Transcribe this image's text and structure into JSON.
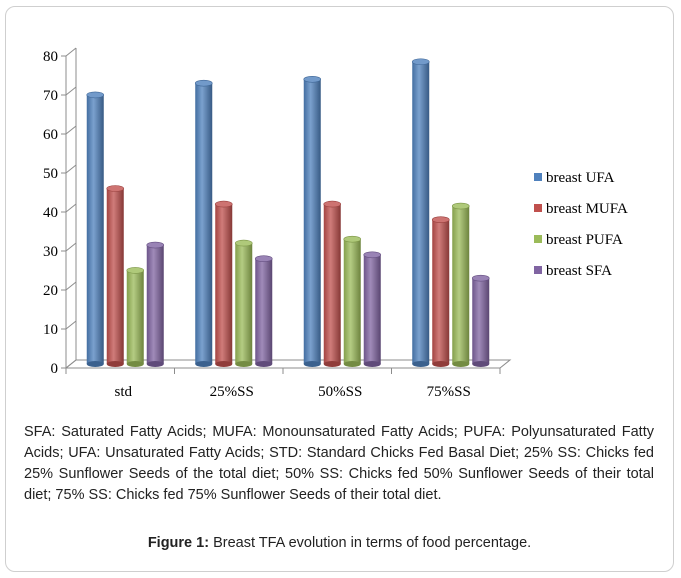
{
  "chart_data": {
    "type": "bar",
    "categories": [
      "std",
      "25%SS",
      "50%SS",
      "75%SS"
    ],
    "series": [
      {
        "name": "breast UFA",
        "values": [
          69,
          72,
          73,
          77.5
        ],
        "color": "#4f81bd"
      },
      {
        "name": "breast MUFA",
        "values": [
          45,
          41,
          41,
          37
        ],
        "color": "#c0504d"
      },
      {
        "name": "breast PUFA",
        "values": [
          24,
          31,
          32,
          40.5
        ],
        "color": "#9bbb59"
      },
      {
        "name": "breast SFA",
        "values": [
          30.5,
          27,
          28,
          22
        ],
        "color": "#8064a2"
      }
    ],
    "y_ticks": [
      "0",
      "10",
      "20",
      "30",
      "40",
      "50",
      "60",
      "70",
      "80"
    ],
    "ylim": [
      0,
      80
    ],
    "legend_position": "right",
    "grid": false
  },
  "caption": "SFA: Saturated Fatty Acids; MUFA: Monounsaturated Fatty Acids; PUFA: Polyunsaturated Fatty Acids; UFA: Unsaturated Fatty Acids; STD: Standard Chicks Fed Basal Diet; 25% SS: Chicks fed 25% Sunflower Seeds of the total diet; 50% SS: Chicks fed 50% Sunflower Seeds of their total diet; 75% SS: Chicks fed 75%  Sunflower Seeds of their total diet.",
  "figure_label": "Figure 1:",
  "figure_title": " Breast TFA evolution in terms of food percentage."
}
